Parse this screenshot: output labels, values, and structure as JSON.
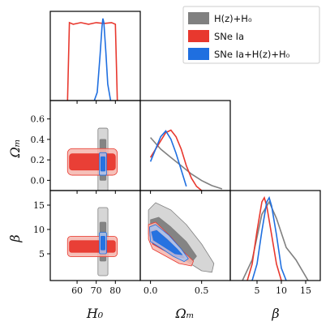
{
  "chart_data": {
    "type": "corner",
    "parameters": [
      "H₀",
      "Ωₘ",
      "β"
    ],
    "ranges": {
      "H0": [
        46,
        93
      ],
      "Om": [
        -0.1,
        0.78
      ],
      "beta": [
        -0.5,
        18
      ]
    },
    "ticks": {
      "H0": [
        60,
        70,
        80
      ],
      "Om_x": [
        0.0,
        0.5
      ],
      "Om_y": [
        0.0,
        0.2,
        0.4,
        0.6
      ],
      "beta_x": [
        5,
        10,
        15
      ],
      "beta_y": [
        5,
        10,
        15
      ]
    },
    "tick_labels": {
      "H0": [
        "60",
        "70",
        "80"
      ],
      "Om_x": [
        "0.0",
        "0.5"
      ],
      "Om_y": [
        "0.0",
        "0.2",
        "0.4",
        "0.6"
      ],
      "beta_x": [
        "5",
        "10",
        "15"
      ],
      "beta_y": [
        "5",
        "10",
        "15"
      ]
    },
    "axis_labels": {
      "H0": "H₀",
      "Om": "Ωₘ",
      "beta": "β"
    },
    "series": [
      {
        "name": "H(z)+H₀",
        "color": "#808080",
        "light": "#cfcfcf",
        "marginals": {
          "Om": {
            "x": [
              0,
              0.1,
              0.2,
              0.3,
              0.4,
              0.5,
              0.6,
              0.7
            ],
            "y": [
              0.64,
              0.5,
              0.4,
              0.3,
              0.2,
              0.12,
              0.06,
              0.02
            ]
          },
          "beta": {
            "x": [
              2,
              4,
              6,
              7.5,
              9,
              11,
              13,
              14,
              15,
              15.5
            ],
            "y": [
              0.0,
              0.25,
              0.8,
              0.95,
              0.75,
              0.4,
              0.25,
              0.15,
              0.05,
              0.0
            ]
          }
        },
        "contours": {
          "H0_Om": {
            "center": [
              73.5,
              0.2
            ],
            "r68": [
              1.6,
              0.2
            ],
            "r95": [
              2.6,
              0.31
            ]
          },
          "H0_beta": {
            "center": [
              73.5,
              7.5
            ],
            "r68": [
              1.6,
              4.0
            ],
            "r95": [
              2.6,
              7.0
            ]
          }
        }
      },
      {
        "name": "SNe Ia",
        "color": "#e8382e",
        "light": "#f4b5ad",
        "marginals": {
          "H0": {
            "x": [
              55,
              56,
              58,
              62,
              66,
              70,
              74,
              78,
              80,
              81
            ],
            "y": [
              0.0,
              0.95,
              0.93,
              0.95,
              0.93,
              0.95,
              0.94,
              0.95,
              0.93,
              0.0
            ]
          },
          "Om": {
            "x": [
              0,
              0.05,
              0.1,
              0.15,
              0.2,
              0.25,
              0.3,
              0.35,
              0.4,
              0.45,
              0.5
            ],
            "y": [
              0.4,
              0.5,
              0.6,
              0.7,
              0.73,
              0.65,
              0.5,
              0.3,
              0.15,
              0.05,
              0.0
            ]
          },
          "beta": {
            "x": [
              3,
              4,
              5,
              6,
              6.5,
              7,
              8,
              9,
              10
            ],
            "y": [
              0.0,
              0.2,
              0.6,
              0.95,
              1.0,
              0.9,
              0.55,
              0.2,
              0.0
            ]
          }
        },
        "contours": {
          "H0_Om": {
            "center": [
              68,
              0.18
            ],
            "r68": [
              12,
              0.08
            ],
            "r95": [
              13,
              0.13
            ]
          },
          "H0_beta": {
            "center": [
              68,
              6.5
            ],
            "r68": [
              12,
              1.2
            ],
            "r95": [
              13,
              2.1
            ]
          }
        }
      },
      {
        "name": "SNe Ia+H(z)+H₀",
        "color": "#1f6fe0",
        "light": "#a8c2ee",
        "marginals": {
          "H0": {
            "x": [
              69,
              70.5,
              72,
              73,
              73.5,
              74,
              75,
              76,
              77.5
            ],
            "y": [
              0.0,
              0.1,
              0.55,
              0.9,
              1.0,
              0.95,
              0.6,
              0.2,
              0.0
            ]
          },
          "Om": {
            "x": [
              0,
              0.05,
              0.1,
              0.15,
              0.2,
              0.25,
              0.3,
              0.35
            ],
            "y": [
              0.35,
              0.5,
              0.65,
              0.72,
              0.62,
              0.45,
              0.25,
              0.05
            ]
          },
          "beta": {
            "x": [
              4,
              5,
              6,
              7,
              7.5,
              8,
              9,
              10,
              11
            ],
            "y": [
              0.0,
              0.2,
              0.6,
              0.95,
              1.0,
              0.9,
              0.55,
              0.15,
              0.0
            ]
          }
        },
        "contours": {
          "H0_Om": {
            "center": [
              73.5,
              0.16
            ],
            "r68": [
              1.1,
              0.07
            ],
            "r95": [
              1.9,
              0.11
            ]
          },
          "H0_beta": {
            "center": [
              73.5,
              7.2
            ],
            "r68": [
              1.1,
              1.4
            ],
            "r95": [
              1.9,
              2.2
            ]
          }
        }
      }
    ],
    "legend": {
      "position": "top-right",
      "labels": [
        "H(z)+H₀",
        "SNe Ia",
        "SNe Ia+H(z)+H₀"
      ]
    }
  }
}
